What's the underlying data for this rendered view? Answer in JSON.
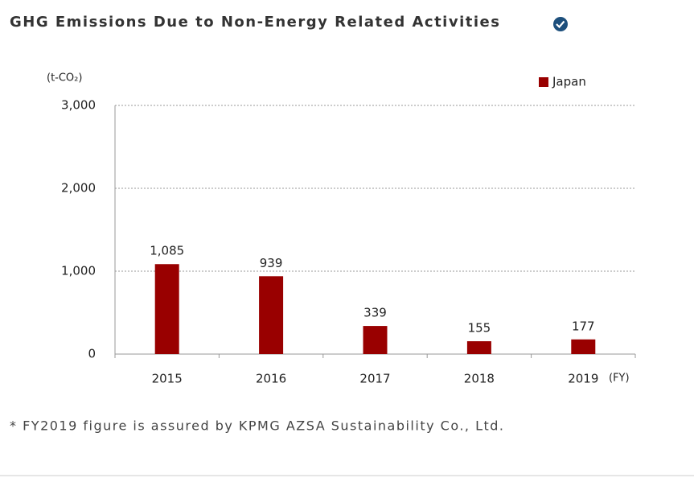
{
  "chart_data": {
    "type": "bar",
    "title": "GHG Emissions Due to Non-Energy Related Activities",
    "y_unit": "(t-CO₂)",
    "x_unit": "(FY)",
    "categories": [
      "2015",
      "2016",
      "2017",
      "2018",
      "2019"
    ],
    "series": [
      {
        "name": "Japan",
        "color": "#990000",
        "values": [
          1085,
          939,
          339,
          155,
          177
        ],
        "value_labels": [
          "1,085",
          "939",
          "339",
          "155",
          "177"
        ]
      }
    ],
    "ylim": [
      0,
      3000
    ],
    "yticks": [
      0,
      {
        "value": 1000,
        "label": "1,000"
      },
      {
        "value": 2000,
        "label": "2,000"
      },
      {
        "value": 3000,
        "label": "3,000"
      }
    ],
    "grid": true,
    "legend": "top-right",
    "footnote": "* FY2019 figure is assured by KPMG AZSA Sustainability Co., Ltd."
  }
}
